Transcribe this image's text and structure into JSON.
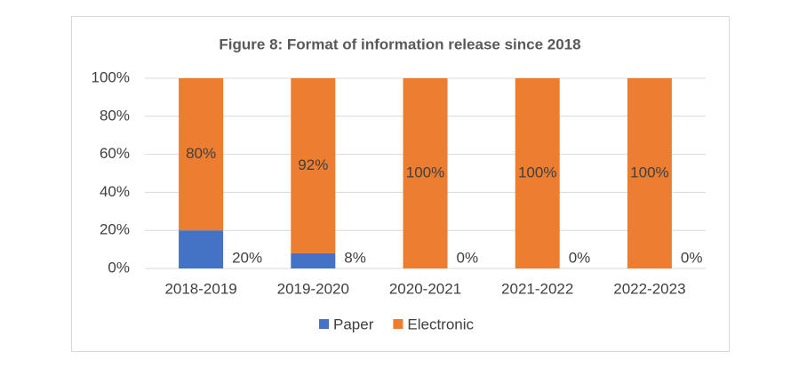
{
  "chart_data": {
    "type": "stacked-bar",
    "title": "Figure 8: Format of information release since 2018",
    "categories": [
      "2018-2019",
      "2019-2020",
      "2020-2021",
      "2021-2022",
      "2022-2023"
    ],
    "series": [
      {
        "name": "Paper",
        "color": "#4472c4",
        "values": [
          20,
          8,
          0,
          0,
          0
        ],
        "value_labels": [
          "20%",
          "8%",
          "0%",
          "0%",
          "0%"
        ]
      },
      {
        "name": "Electronic",
        "color": "#ed7d31",
        "values": [
          80,
          92,
          100,
          100,
          100
        ],
        "value_labels": [
          "80%",
          "92%",
          "100%",
          "100%",
          "100%"
        ]
      }
    ],
    "ylim": [
      0,
      100
    ],
    "yticks": [
      {
        "value": 0,
        "label": "0%"
      },
      {
        "value": 20,
        "label": "20%"
      },
      {
        "value": 40,
        "label": "40%"
      },
      {
        "value": 60,
        "label": "60%"
      },
      {
        "value": 80,
        "label": "80%"
      },
      {
        "value": 100,
        "label": "100%"
      }
    ],
    "grid": true,
    "legend": "bottom"
  }
}
